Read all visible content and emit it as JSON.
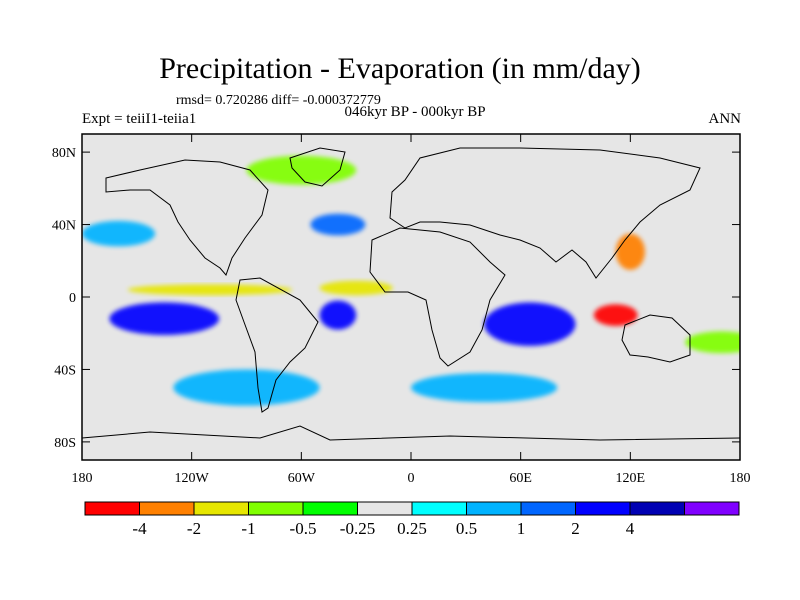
{
  "header": {
    "title": "Precipitation - Evaporation (in mm/day)",
    "stats": "rmsd= 0.720286 diff= -0.000372779",
    "subtitle": "046kyr BP - 000kyr BP",
    "expt": "Expt = teiiI1-teiia1",
    "season": "ANN"
  },
  "map": {
    "background_color": "#e6e6e6",
    "lat_ticks": [
      {
        "value": 80,
        "label": "80N"
      },
      {
        "value": 40,
        "label": "40N"
      },
      {
        "value": 0,
        "label": "0"
      },
      {
        "value": -40,
        "label": "40S"
      },
      {
        "value": -80,
        "label": "80S"
      }
    ],
    "lon_ticks": [
      {
        "value": -180,
        "label": "180"
      },
      {
        "value": -120,
        "label": "120W"
      },
      {
        "value": -60,
        "label": "60W"
      },
      {
        "value": 0,
        "label": "0"
      },
      {
        "value": 60,
        "label": "60E"
      },
      {
        "value": 120,
        "label": "120E"
      },
      {
        "value": 180,
        "label": "180"
      }
    ],
    "lon_range": [
      -180,
      180
    ],
    "lat_range": [
      -90,
      90
    ]
  },
  "colorbar": {
    "colors": [
      "#ff0000",
      "#ff8000",
      "#e6e600",
      "#80ff00",
      "#00ff00",
      "#e6e6e6",
      "#00ffff",
      "#00b3ff",
      "#0066ff",
      "#0000ff",
      "#0000b3",
      "#8000ff"
    ],
    "labels": [
      "-4",
      "-2",
      "-1",
      "-0.5",
      "-0.25",
      "0.25",
      "0.5",
      "1",
      "2",
      "4"
    ]
  },
  "chart_data": {
    "type": "heatmap",
    "title": "Precipitation - Evaporation (in mm/day)",
    "contour_levels": [
      -4,
      -2,
      -1,
      -0.5,
      -0.25,
      0.25,
      0.5,
      1,
      2,
      4
    ],
    "fields": [
      {
        "lon": -135,
        "lat": -12,
        "rx": 30,
        "ry": 9,
        "value": 2.5
      },
      {
        "lon": -40,
        "lat": -10,
        "rx": 10,
        "ry": 8,
        "value": 2.5
      },
      {
        "lon": 65,
        "lat": -15,
        "rx": 25,
        "ry": 12,
        "value": 2.5
      },
      {
        "lon": 112,
        "lat": -10,
        "rx": 12,
        "ry": 6,
        "value": -4.5
      },
      {
        "lon": 120,
        "lat": 25,
        "rx": 8,
        "ry": 10,
        "value": -3
      },
      {
        "lon": -110,
        "lat": 4,
        "rx": 45,
        "ry": 3,
        "value": -1.5
      },
      {
        "lon": -30,
        "lat": 5,
        "rx": 20,
        "ry": 4,
        "value": -1.5
      },
      {
        "lon": -160,
        "lat": 35,
        "rx": 20,
        "ry": 7,
        "value": 0.7
      },
      {
        "lon": -40,
        "lat": 40,
        "rx": 15,
        "ry": 6,
        "value": 1.5
      },
      {
        "lon": 170,
        "lat": -25,
        "rx": 20,
        "ry": 6,
        "value": -0.7
      },
      {
        "lon": -90,
        "lat": -50,
        "rx": 40,
        "ry": 10,
        "value": 0.7
      },
      {
        "lon": 40,
        "lat": -50,
        "rx": 40,
        "ry": 8,
        "value": 0.7
      },
      {
        "lon": -60,
        "lat": 70,
        "rx": 30,
        "ry": 8,
        "value": -0.7
      }
    ]
  }
}
